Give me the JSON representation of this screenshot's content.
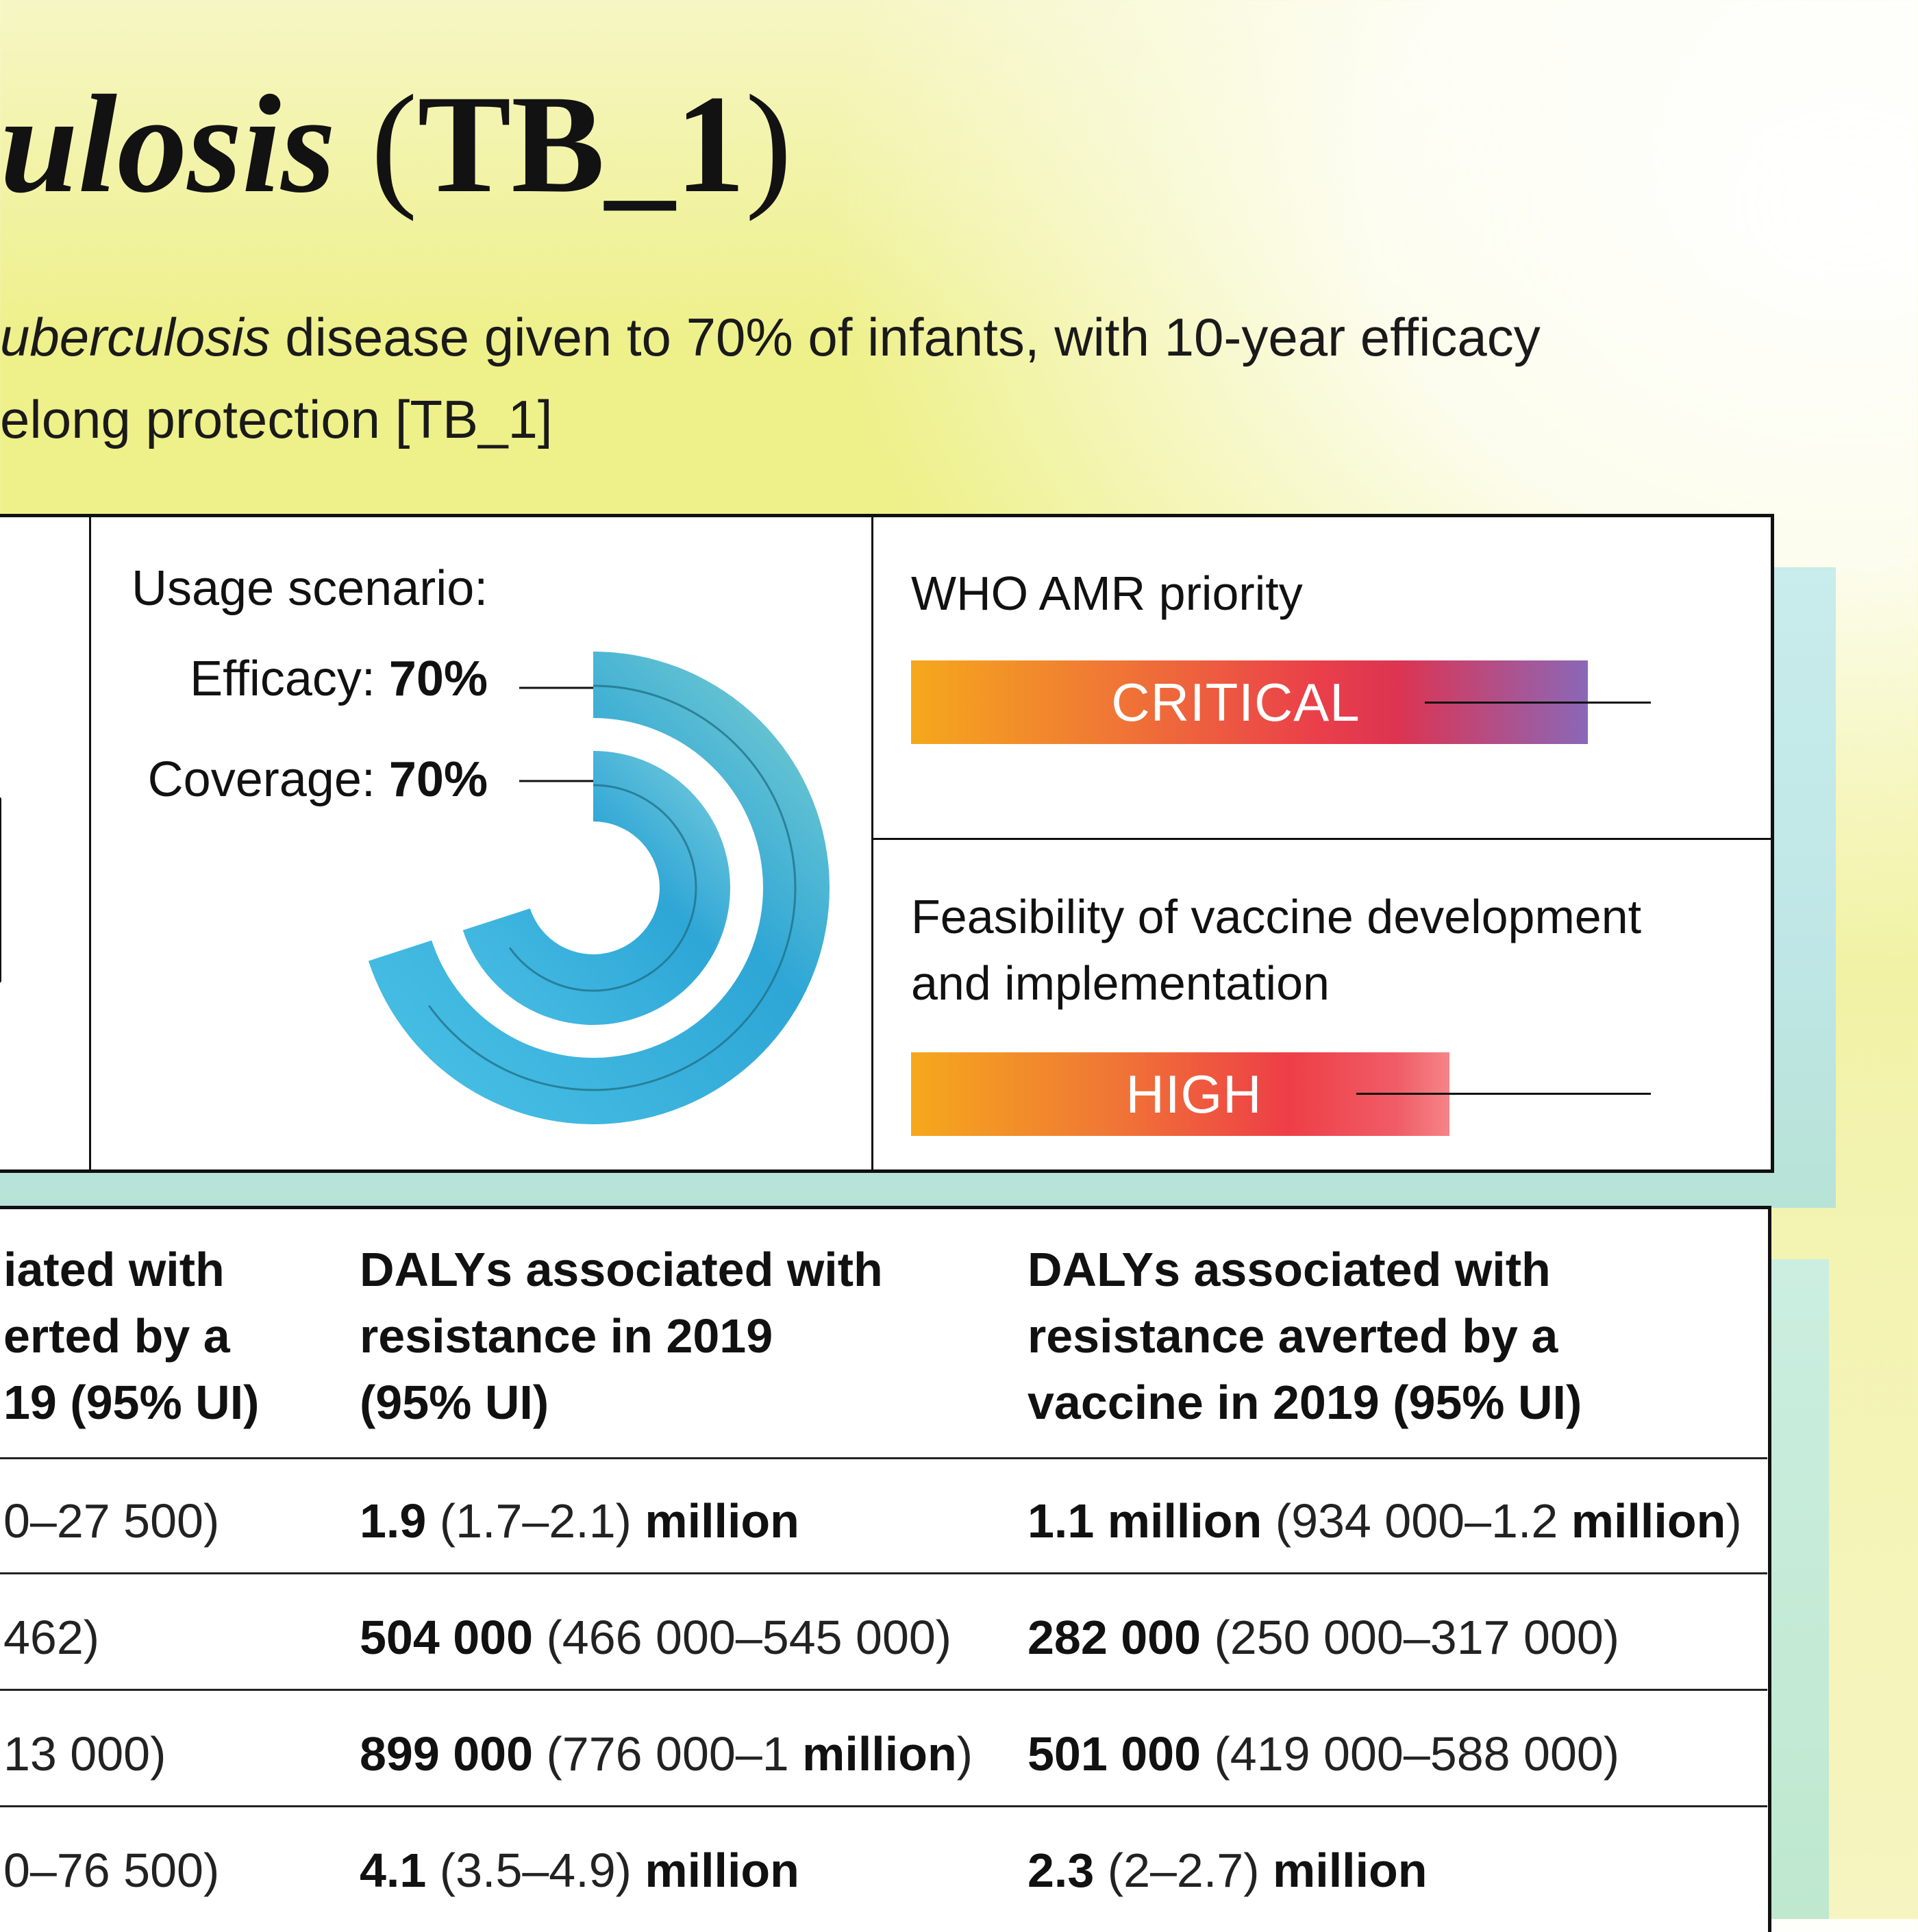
{
  "title": {
    "italic": "ulosis",
    "open_paren": " (",
    "code": "TB_1",
    "close_paren": ")"
  },
  "subtitle": {
    "line1_italic": "uberculosis",
    "line1_rest": " disease given to 70% of infants, with 10-year efficacy",
    "line2": "elong protection [TB_1]"
  },
  "usage": {
    "title": "Usage scenario:",
    "efficacy_label": "Efficacy:",
    "efficacy_value": "70%",
    "coverage_label": "Coverage:",
    "coverage_value": "70%",
    "efficacy_fraction": 0.7,
    "coverage_fraction": 0.7
  },
  "who_priority": {
    "title": "WHO AMR priority",
    "level": "CRITICAL",
    "fraction": 0.82
  },
  "feasibility": {
    "title_line1": "Feasibility of vaccine development",
    "title_line2": "and implementation",
    "level": "HIGH",
    "fraction": 0.67
  },
  "table": {
    "headers": [
      [
        "iated with",
        "erted by a",
        "19 (95% UI)"
      ],
      [
        "DALYs associated with",
        "resistance in 2019",
        "(95% UI)"
      ],
      [
        "DALYs associated with",
        "resistance averted by a",
        "vaccine in 2019 (95% UI)"
      ]
    ],
    "rows": [
      {
        "c0": "0–27 500)",
        "c1_bold": "1.9",
        "c1_range": " (1.7–2.1) ",
        "c1_tail": "million",
        "c1_end": "",
        "c2_bold": "1.1 million",
        "c2_range": " (934 000–1.2 ",
        "c2_tail": "million",
        "c2_end": ")"
      },
      {
        "c0": "462)",
        "c1_bold": "504 000",
        "c1_range": " (466 000–545 000)",
        "c1_tail": "",
        "c1_end": "",
        "c2_bold": "282 000",
        "c2_range": " (250 000–317 000)",
        "c2_tail": "",
        "c2_end": ""
      },
      {
        "c0": "13 000)",
        "c1_bold": "899 000",
        "c1_range": " (776 000–1 ",
        "c1_tail": "million",
        "c1_end": ")",
        "c2_bold": "501 000",
        "c2_range": " (419 000–588 000)",
        "c2_tail": "",
        "c2_end": ""
      },
      {
        "c0": "0–76 500)",
        "c1_bold": "4.1",
        "c1_range": " (3.5–4.9) ",
        "c1_tail": "million",
        "c1_end": "",
        "c2_bold": "2.3",
        "c2_range": " (2–2.7) ",
        "c2_tail": "million",
        "c2_end": ""
      }
    ]
  },
  "colors": {
    "donut_light": "#4cc3e6",
    "donut_dark": "#2ea6d6",
    "donut_end": "#7fd0d0"
  }
}
